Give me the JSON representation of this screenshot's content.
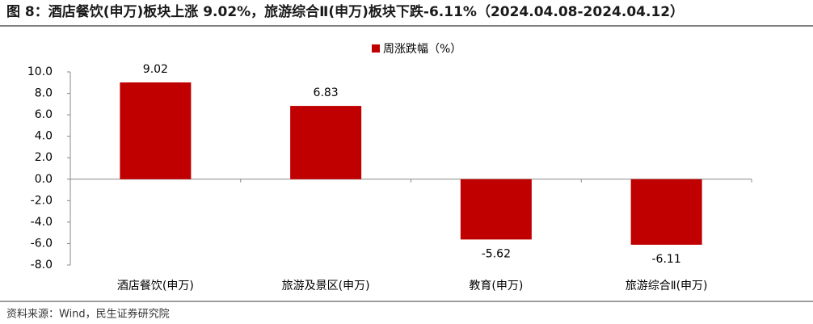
{
  "chart_data": {
    "type": "bar",
    "title": "图 8：酒店餐饮(申万)板块上涨 9.02%，旅游综合Ⅱ(申万)板块下跌-6.11%（2024.04.08-2024.04.12）",
    "categories": [
      "酒店餐饮(申万)",
      "旅游及景区(申万)",
      "教育(申万)",
      "旅游综合Ⅱ(申万)"
    ],
    "series": [
      {
        "name": "周涨跌幅（%）",
        "color": "#c00000",
        "values": [
          9.02,
          6.83,
          -5.62,
          -6.11
        ]
      }
    ],
    "ylim": [
      -8,
      10
    ],
    "yticks": [
      {
        "value": -8,
        "label": "-8.0"
      },
      {
        "value": -6,
        "label": "-6.0"
      },
      {
        "value": -4,
        "label": "-4.0"
      },
      {
        "value": -2,
        "label": "-2.0"
      },
      {
        "value": 0,
        "label": "0.0"
      },
      {
        "value": 2,
        "label": "2.0"
      },
      {
        "value": 4,
        "label": "4.0"
      },
      {
        "value": 6,
        "label": "6.0"
      },
      {
        "value": 8,
        "label": "8.0"
      },
      {
        "value": 10,
        "label": "10.0"
      }
    ],
    "legend": "top",
    "source": "资料来源：Wind，民生证券研究院"
  }
}
